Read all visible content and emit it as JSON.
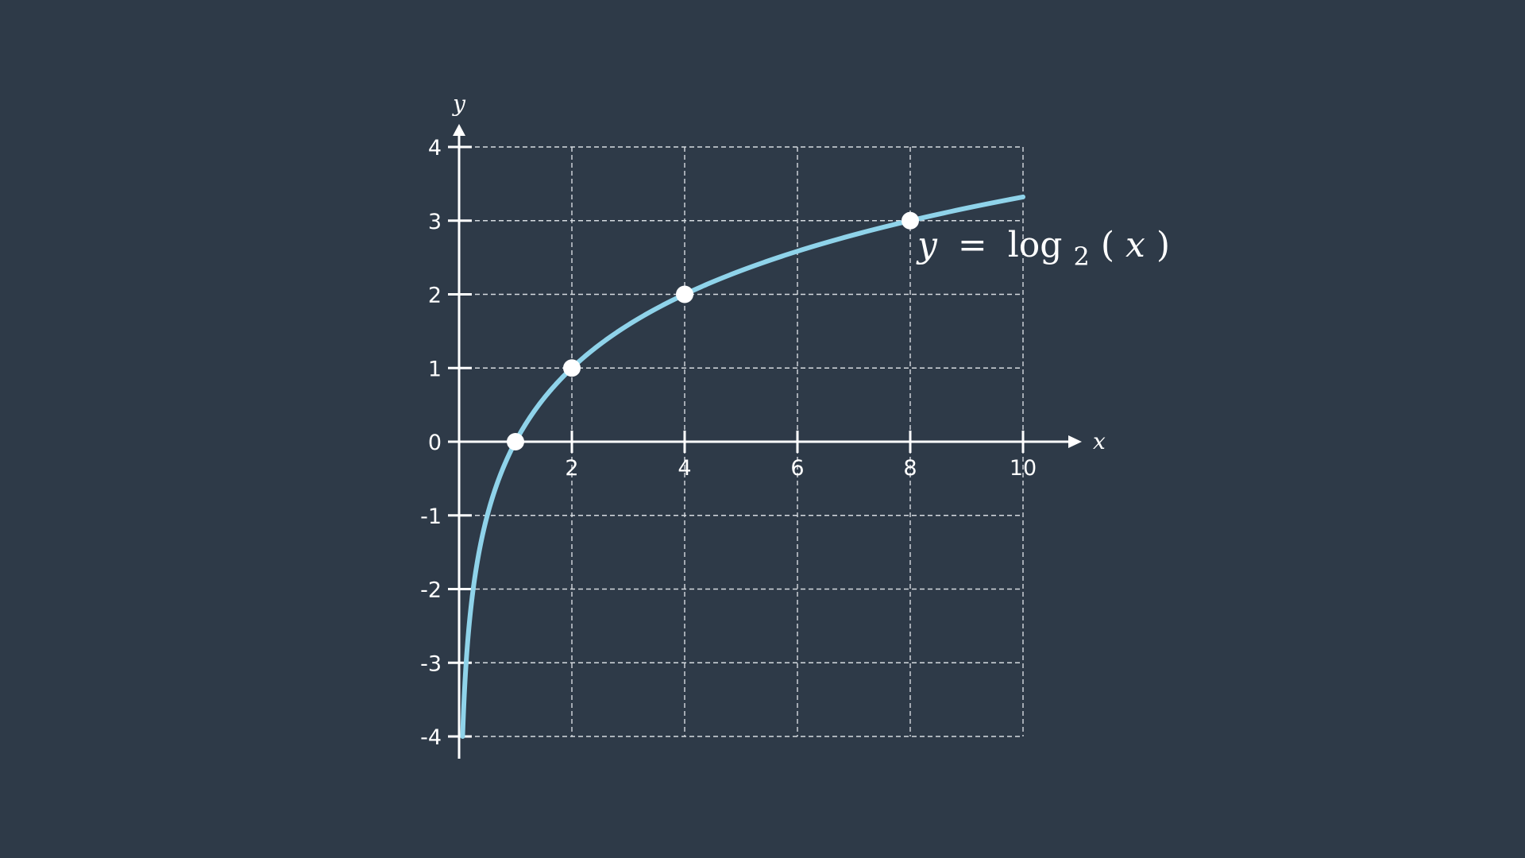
{
  "chart_data": {
    "type": "line",
    "function_label": {
      "y": "y",
      "eq": "=",
      "fn": "log",
      "base": "2",
      "open": "(",
      "arg": "x",
      "close": ")"
    },
    "xlabel": "x",
    "ylabel": "y",
    "xlim": [
      0,
      10
    ],
    "ylim": [
      -4,
      4
    ],
    "x_ticks": [
      2,
      4,
      6,
      8,
      10
    ],
    "y_ticks": [
      -4,
      -3,
      -2,
      -1,
      0,
      1,
      2,
      3,
      4
    ],
    "grid": true,
    "series": [
      {
        "function": "log2(x)",
        "x_range": [
          0.0625,
          10
        ],
        "color": "#8fd3ea"
      }
    ],
    "points": [
      {
        "x": 1,
        "y": 0
      },
      {
        "x": 2,
        "y": 1
      },
      {
        "x": 4,
        "y": 2
      },
      {
        "x": 8,
        "y": 3
      }
    ],
    "colors": {
      "background": "#2e3a48",
      "axis": "#ffffff",
      "grid": "#d6dbe0",
      "curve": "#8fd3ea",
      "point": "#ffffff"
    }
  }
}
